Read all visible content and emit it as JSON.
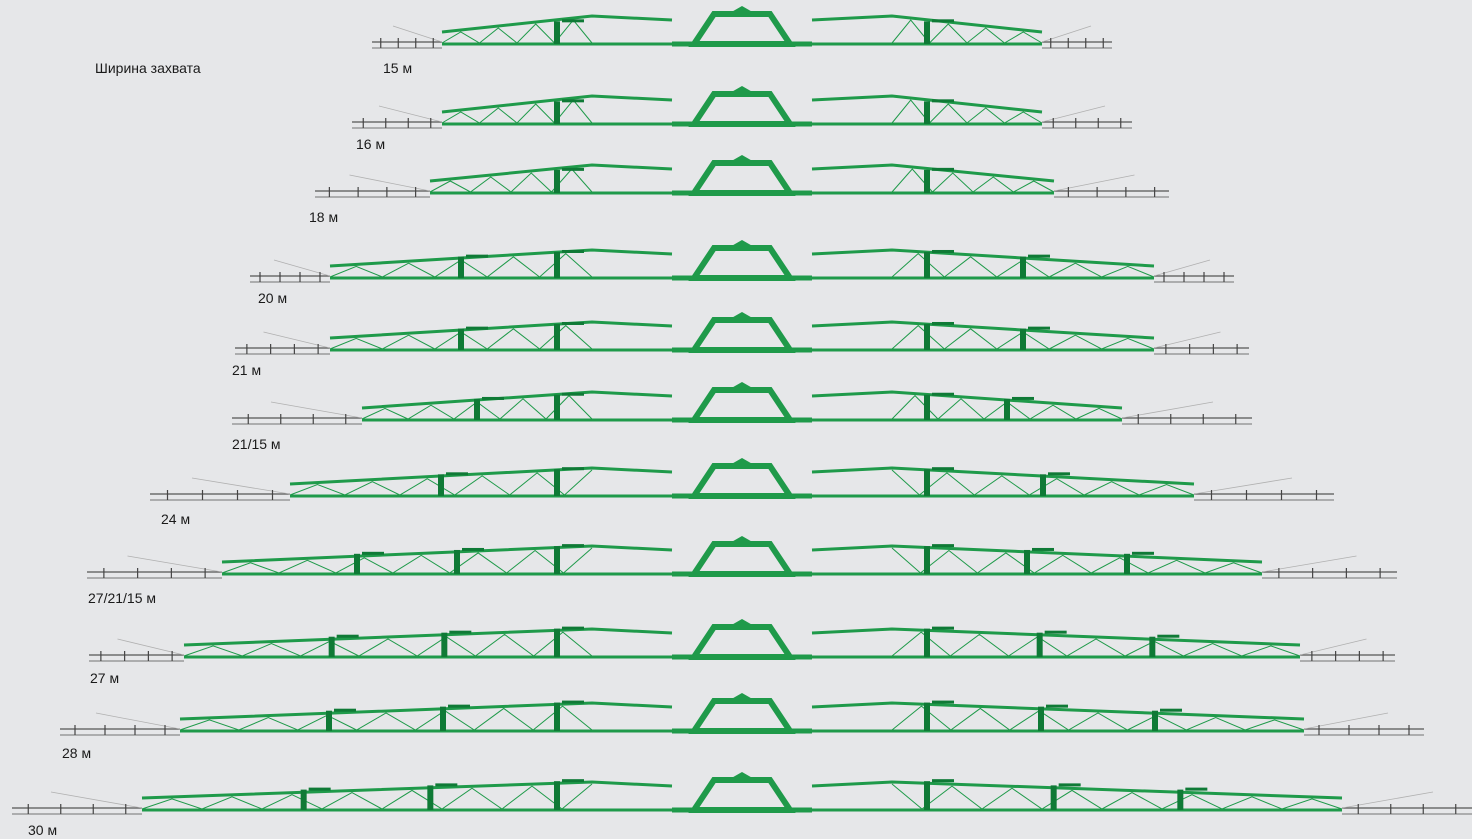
{
  "caption": "Ширина захвата",
  "colors": {
    "boom": "#1f9a4a",
    "boom_dark": "#0f7a36",
    "extension": "#8a8a8a",
    "background": "#e6e7e9",
    "text": "#1a1a1a"
  },
  "booms": [
    {
      "label": "15 м",
      "frames": 1
    },
    {
      "label": "16 м",
      "frames": 1
    },
    {
      "label": "18 м",
      "frames": 1
    },
    {
      "label": "20 м",
      "frames": 2
    },
    {
      "label": "21 м",
      "frames": 2
    },
    {
      "label": "21/15 м",
      "frames": 2
    },
    {
      "label": "24 м",
      "frames": 2
    },
    {
      "label": "27/21/15 м",
      "frames": 3
    },
    {
      "label": "27 м",
      "frames": 3
    },
    {
      "label": "28 м",
      "frames": 3
    },
    {
      "label": "30 м",
      "frames": 3
    }
  ]
}
